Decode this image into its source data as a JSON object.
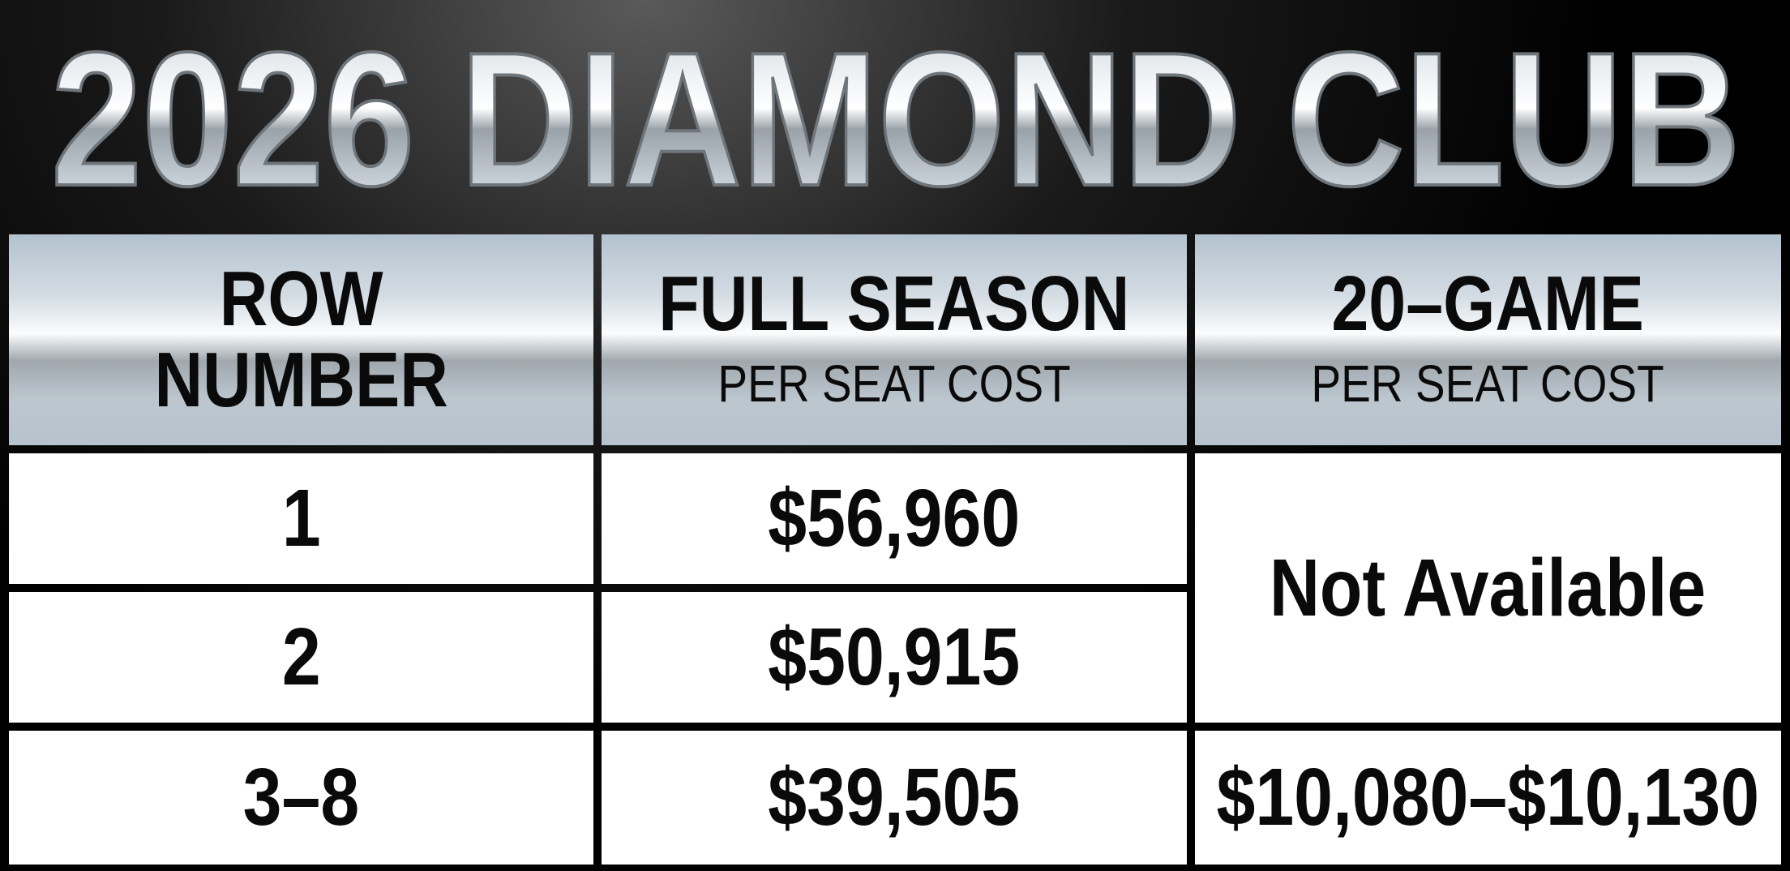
{
  "title": "2026 DIAMOND CLUB",
  "table": {
    "columns": [
      {
        "title": "ROW NUMBER"
      },
      {
        "title": "FULL SEASON",
        "subtitle": "PER SEAT COST"
      },
      {
        "title": "20–GAME",
        "subtitle": "PER SEAT COST"
      }
    ],
    "rows": [
      [
        "1",
        "$56,960",
        "Not Available"
      ],
      [
        "2",
        "$50,915"
      ],
      [
        "3–8",
        "$39,505",
        "$10,080–$10,130"
      ]
    ]
  }
}
